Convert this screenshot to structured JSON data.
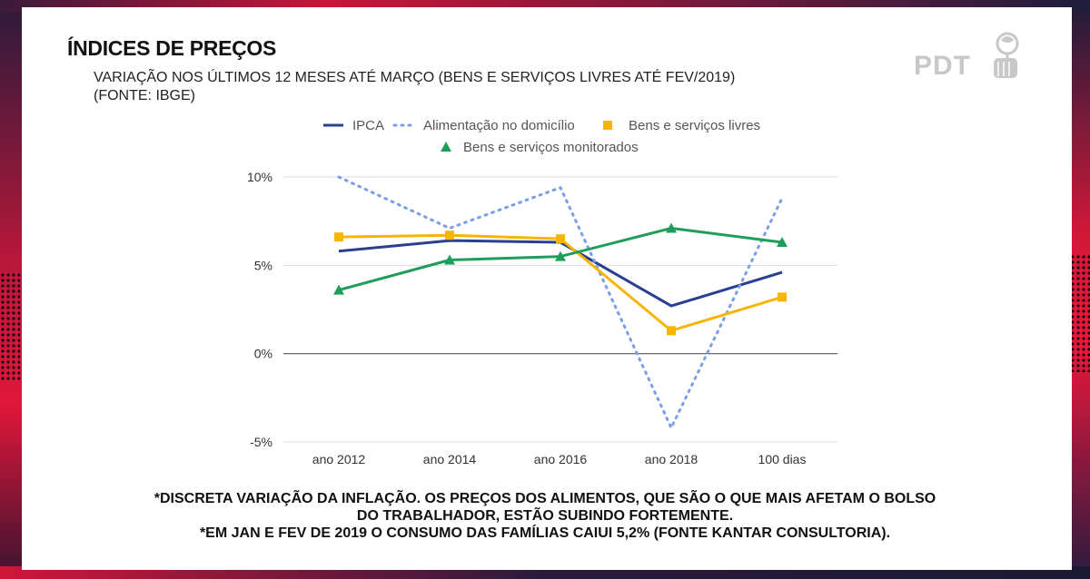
{
  "slide": {
    "title": "ÍNDICES DE PREÇOS",
    "subtitle_line1": "VARIAÇÃO NOS ÚLTIMOS 12 MESES ATÉ MARÇO (BENS E SERVIÇOS LIVRES ATÉ FEV/2019)",
    "subtitle_line2": "(FONTE: IBGE)",
    "logo_text": "PDT",
    "footnote_line1": "*DISCRETA VARIAÇÃO DA INFLAÇÃO. OS PREÇOS DOS ALIMENTOS, QUE SÃO O QUE MAIS AFETAM O BOLSO",
    "footnote_line2": "DO TRABALHADOR, ESTÃO SUBINDO FORTEMENTE.",
    "footnote_line3": "*EM JAN E FEV DE 2019 O CONSUMO DAS FAMÍLIAS CAIUI 5,2% (FONTE KANTAR CONSULTORIA)."
  },
  "colors": {
    "ipca": "#2a3f8f",
    "alimentacao": "#7b9fe6",
    "livres": "#f7b500",
    "monitorados": "#1e9e5a",
    "grid": "#dddddd",
    "zero": "#555555"
  },
  "chart_data": {
    "type": "line",
    "title": "",
    "xlabel": "",
    "ylabel": "",
    "categories": [
      "ano 2012",
      "ano 2014",
      "ano 2016",
      "ano 2018",
      "100 dias"
    ],
    "ylim": [
      -5,
      10
    ],
    "yticks": [
      10,
      5,
      0,
      -5
    ],
    "ytick_labels": [
      "10%",
      "5%",
      "0%",
      "-5%"
    ],
    "legend_position": "top",
    "series": [
      {
        "name": "IPCA",
        "key": "ipca",
        "marker": "none",
        "dash": false,
        "values": [
          5.8,
          6.4,
          6.3,
          2.7,
          4.6
        ]
      },
      {
        "name": "Alimentação no domicílio",
        "key": "alimentacao",
        "marker": "none",
        "dash": true,
        "values": [
          10.0,
          7.1,
          9.4,
          -4.2,
          8.8
        ]
      },
      {
        "name": "Bens e serviços livres",
        "key": "livres",
        "marker": "square",
        "dash": false,
        "values": [
          6.6,
          6.7,
          6.5,
          1.3,
          3.2
        ]
      },
      {
        "name": "Bens e serviços monitorados",
        "key": "monitorados",
        "marker": "triangle",
        "dash": false,
        "values": [
          3.6,
          5.3,
          5.5,
          7.1,
          6.3
        ]
      }
    ]
  }
}
